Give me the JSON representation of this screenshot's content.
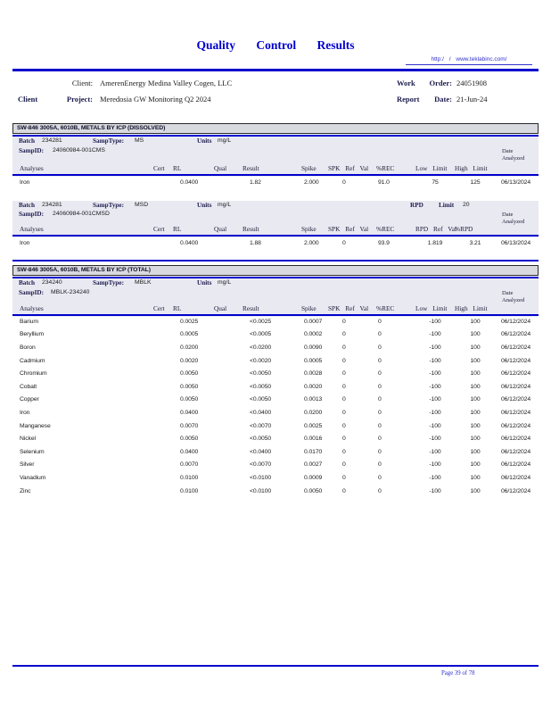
{
  "colors": {
    "accent_blue": "#0000cc",
    "link_blue": "#3030d0",
    "lavender_bg": "#e9e9f2",
    "section_bar_bg": "#d9d9e0"
  },
  "page": {
    "title": "Quality Control Results",
    "url": "http:/ / www.teklabinc.com/",
    "client_label": "Client:",
    "client_value": "AmerenEnergy Medina Valley Cogen, LLC",
    "project_label_1": "Client",
    "project_label_2": "Project:",
    "project_value": "Meredosia GW Monitoring Q2 2024",
    "work_label_1": "Work",
    "work_label_2": "Order:",
    "work_value": "24051908",
    "report_label_1": "Report",
    "report_label_2": "Date:",
    "report_value": "21-Jun-24",
    "footer_page": "Page 39 of 78"
  },
  "sections": [
    {
      "title": "SW-846 3005A, 6010B, METALS BY ICP (DISSOLVED)",
      "batches": [
        {
          "batch_label": "Batch",
          "batch": "234281",
          "samptype_label": "SampType:",
          "samptype": "MS",
          "units_label": "Units",
          "units": "mg/L",
          "sampid_label": "SampID:",
          "sampid": "24060984-001CMS",
          "date_header": "Date\nAnalyzed",
          "columns": [
            "Analyses",
            "Cert",
            "RL",
            "Qual",
            "Result",
            "Spike",
            "SPK Ref Val",
            "%REC",
            "Low Limit",
            "High Limit",
            ""
          ],
          "rows": [
            [
              "Iron",
              "",
              "0.0400",
              "",
              "1.82",
              "2.000",
              "0",
              "91.0",
              "75",
              "125",
              "06/13/2024"
            ]
          ]
        },
        {
          "batch_label": "Batch",
          "batch": "234281",
          "samptype_label": "SampType:",
          "samptype": "MSD",
          "units_label": "Units",
          "units": "mg/L",
          "rpd_label_1": "RPD",
          "rpd_label_2": "Limit",
          "rpd_limit": "20",
          "sampid_label": "SampID:",
          "sampid": "24060984-001CMSD",
          "date_header": "Date\nAnalyzed",
          "columns": [
            "Analyses",
            "Cert",
            "RL",
            "Qual",
            "Result",
            "Spike",
            "SPK Ref Val",
            "%REC",
            "RPD Ref Val",
            "%RPD",
            ""
          ],
          "rows": [
            [
              "Iron",
              "",
              "0.0400",
              "",
              "1.88",
              "2.000",
              "0",
              "93.9",
              "1.819",
              "3.21",
              "06/13/2024"
            ]
          ]
        }
      ]
    },
    {
      "title": "SW-846 3005A, 6010B, METALS BY ICP (TOTAL)",
      "batches": [
        {
          "batch_label": "Batch",
          "batch": "234240",
          "samptype_label": "SampType:",
          "samptype": "MBLK",
          "units_label": "Units",
          "units": "mg/L",
          "sampid_label": "SampID:",
          "sampid": "MBLK-234240",
          "date_header": "Date\nAnalyzed",
          "columns": [
            "Analyses",
            "Cert",
            "RL",
            "Qual",
            "Result",
            "Spike",
            "SPK Ref Val",
            "%REC",
            "Low Limit",
            "High Limit",
            ""
          ],
          "rows": [
            [
              "Barium",
              "",
              "0.0025",
              "",
              "<0.0025",
              "0.0007",
              "0",
              "0",
              "-100",
              "100",
              "06/12/2024"
            ],
            [
              "Beryllium",
              "",
              "0.0005",
              "",
              "<0.0005",
              "0.0002",
              "0",
              "0",
              "-100",
              "100",
              "06/12/2024"
            ],
            [
              "Boron",
              "",
              "0.0200",
              "",
              "<0.0200",
              "0.0090",
              "0",
              "0",
              "-100",
              "100",
              "06/12/2024"
            ],
            [
              "Cadmium",
              "",
              "0.0020",
              "",
              "<0.0020",
              "0.0005",
              "0",
              "0",
              "-100",
              "100",
              "06/12/2024"
            ],
            [
              "Chromium",
              "",
              "0.0050",
              "",
              "<0.0050",
              "0.0028",
              "0",
              "0",
              "-100",
              "100",
              "06/12/2024"
            ],
            [
              "Cobalt",
              "",
              "0.0050",
              "",
              "<0.0050",
              "0.0020",
              "0",
              "0",
              "-100",
              "100",
              "06/12/2024"
            ],
            [
              "Copper",
              "",
              "0.0050",
              "",
              "<0.0050",
              "0.0013",
              "0",
              "0",
              "-100",
              "100",
              "06/12/2024"
            ],
            [
              "Iron",
              "",
              "0.0400",
              "",
              "<0.0400",
              "0.0200",
              "0",
              "0",
              "-100",
              "100",
              "06/12/2024"
            ],
            [
              "Manganese",
              "",
              "0.0070",
              "",
              "<0.0070",
              "0.0025",
              "0",
              "0",
              "-100",
              "100",
              "06/12/2024"
            ],
            [
              "Nickel",
              "",
              "0.0050",
              "",
              "<0.0050",
              "0.0016",
              "0",
              "0",
              "-100",
              "100",
              "06/12/2024"
            ],
            [
              "Selenium",
              "",
              "0.0400",
              "",
              "<0.0400",
              "0.0170",
              "0",
              "0",
              "-100",
              "100",
              "06/12/2024"
            ],
            [
              "Silver",
              "",
              "0.0070",
              "",
              "<0.0070",
              "0.0027",
              "0",
              "0",
              "-100",
              "100",
              "06/12/2024"
            ],
            [
              "Vanadium",
              "",
              "0.0100",
              "",
              "<0.0100",
              "0.0009",
              "0",
              "0",
              "-100",
              "100",
              "06/12/2024"
            ],
            [
              "Zinc",
              "",
              "0.0100",
              "",
              "<0.0100",
              "0.0050",
              "0",
              "0",
              "-100",
              "100",
              "06/12/2024"
            ]
          ]
        }
      ]
    }
  ]
}
